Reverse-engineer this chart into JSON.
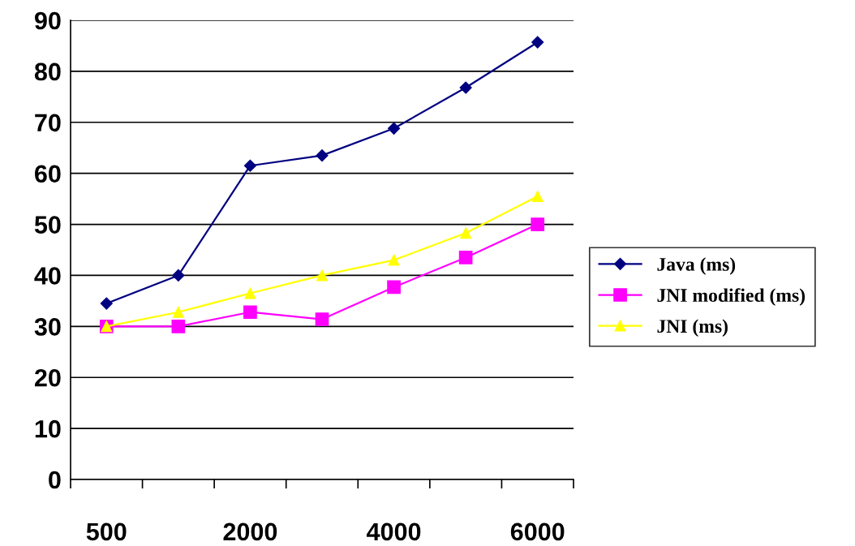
{
  "chart_data": {
    "type": "line",
    "categories": [
      "500",
      null,
      "2000",
      null,
      "4000",
      null,
      "6000"
    ],
    "series": [
      {
        "name": "Java (ms)",
        "color": "#000080",
        "marker": "diamond",
        "values": [
          34.5,
          40,
          61.5,
          63.5,
          68.8,
          76.8,
          85.7
        ]
      },
      {
        "name": "JNI modified (ms)",
        "color": "#ff00ff",
        "marker": "square",
        "values": [
          30,
          30,
          32.8,
          31.4,
          37.7,
          43.5,
          50
        ]
      },
      {
        "name": "JNI (ms)",
        "color": "#ffff00",
        "marker": "triangle",
        "values": [
          30,
          32.8,
          36.5,
          40,
          43,
          48.3,
          55.5
        ]
      }
    ],
    "ylim": [
      0,
      90
    ],
    "yticks": [
      0,
      10,
      20,
      30,
      40,
      50,
      60,
      70,
      80,
      90
    ],
    "grid": "y",
    "legend": "right",
    "line_style": "solid"
  }
}
